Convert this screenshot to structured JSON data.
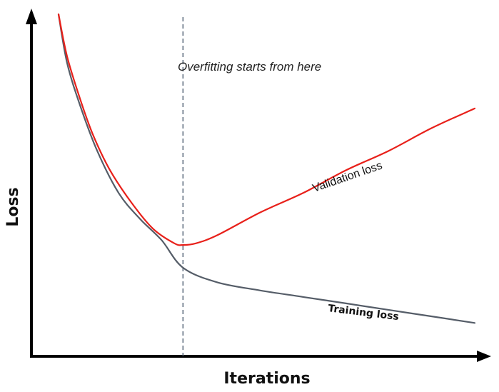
{
  "chart_data": {
    "type": "line",
    "title": "",
    "xlabel": "Iterations",
    "ylabel": "Loss",
    "xlim": [
      0,
      100
    ],
    "ylim": [
      0,
      100
    ],
    "grid": false,
    "legend": "none",
    "axis_color": "#000000",
    "series": [
      {
        "name": "Validation loss",
        "color": "#e8201a",
        "x": [
          3,
          5,
          8,
          11,
          15,
          20,
          25,
          30,
          32,
          35,
          40,
          50,
          60,
          70,
          80,
          90,
          100
        ],
        "y": [
          100,
          87,
          74,
          63,
          52,
          42,
          34,
          29.5,
          29,
          29.5,
          32,
          39,
          45,
          52,
          58,
          65,
          71
        ]
      },
      {
        "name": "Training loss",
        "color": "#555d68",
        "x": [
          3,
          5,
          8,
          12,
          17,
          22,
          27,
          32,
          40,
          50,
          60,
          70,
          80,
          90,
          100
        ],
        "y": [
          100,
          85,
          72,
          58,
          45,
          37,
          30.5,
          22,
          17.5,
          15,
          13,
          11,
          9,
          7,
          5
        ]
      }
    ],
    "annotations": [
      {
        "text": "Overfitting starts from here",
        "x_line": 32,
        "line_style": "dashed",
        "line_color": "#4a5a6e"
      }
    ]
  }
}
